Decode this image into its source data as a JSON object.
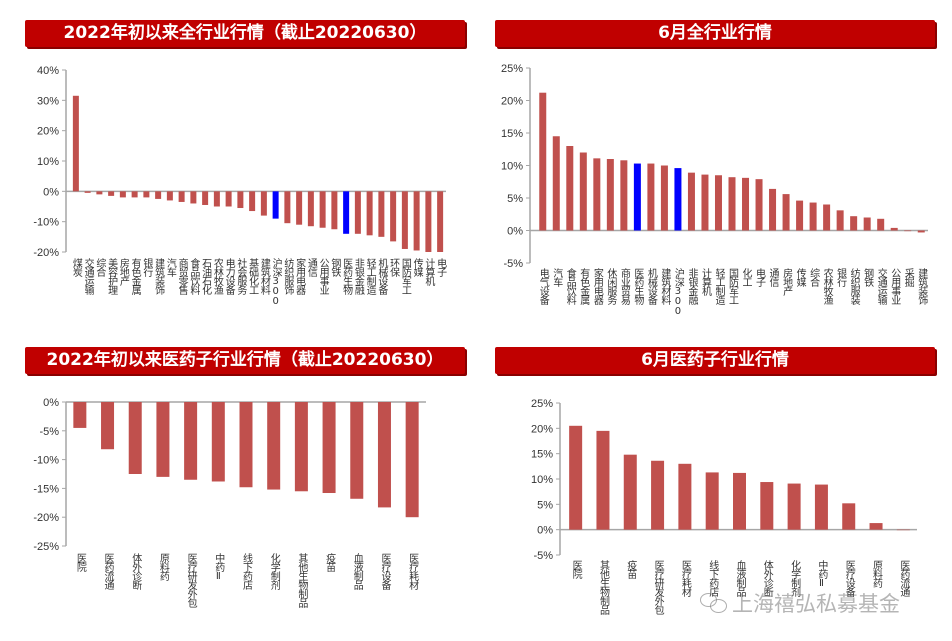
{
  "colors": {
    "bar": "#c0504d",
    "highlight": "#0000ff",
    "title_bg": "#c00000",
    "axis": "#a6a6a6"
  },
  "watermark": "上海禧弘私募基金",
  "chart_data": [
    {
      "type": "bar",
      "title": "2022年初以来全行业行情（截止20220630）",
      "ylim": [
        -20,
        40
      ],
      "yticks": [
        40,
        30,
        20,
        10,
        0,
        -10,
        -20
      ],
      "tick_labels": [
        "40%",
        "30%",
        "20%",
        "10%",
        "0%",
        "-10%",
        "-20%"
      ],
      "categories": [
        "煤炭",
        "交通运输",
        "综合",
        "美容护理",
        "房地产",
        "有色金属",
        "银行",
        "建筑装饰",
        "汽车",
        "商贸零售",
        "食品饮料",
        "石油石化",
        "农林牧渔",
        "电力设备",
        "社会服务",
        "基础化工",
        "建筑材料",
        "沪深300",
        "纺织服饰",
        "家用电器",
        "通信",
        "公用事业",
        "钢铁",
        "医药生物",
        "非银金融",
        "轻工制造",
        "机械设备",
        "环保",
        "国防军工",
        "传媒",
        "计算机",
        "电子"
      ],
      "values": [
        31.5,
        -0.5,
        -1,
        -1.5,
        -2,
        -2,
        -2,
        -2.5,
        -3,
        -3.5,
        -4,
        -4.5,
        -5,
        -5,
        -5.5,
        -6.5,
        -8,
        -9,
        -10.5,
        -11,
        -11.5,
        -12,
        -12.5,
        -14,
        -14,
        -14.5,
        -15,
        -16.5,
        -19,
        -19.5,
        -20,
        -20
      ],
      "highlight": [
        "沪深300",
        "医药生物"
      ]
    },
    {
      "type": "bar",
      "title": "6月全行业行情",
      "ylim": [
        -5,
        25
      ],
      "yticks": [
        25,
        20,
        15,
        10,
        5,
        0,
        -5
      ],
      "tick_labels": [
        "25%",
        "20%",
        "15%",
        "10%",
        "5%",
        "0%",
        "-5%"
      ],
      "categories": [
        "电气设备",
        "汽车",
        "食品饮料",
        "有色金属",
        "家用电器",
        "休闲服务",
        "商业贸易",
        "医药生物",
        "机械设备",
        "建筑材料",
        "沪深300",
        "非银金融",
        "计算机",
        "轻工制造",
        "国防军工",
        "化工",
        "电子",
        "通信",
        "房地产",
        "传媒",
        "综合",
        "农林牧渔",
        "银行",
        "纺织服装",
        "钢铁",
        "交通运输",
        "公用事业",
        "采掘",
        "建筑装饰"
      ],
      "values": [
        21.2,
        14.5,
        13,
        12,
        11.1,
        11,
        10.8,
        10.3,
        10.3,
        10,
        9.6,
        8.9,
        8.6,
        8.5,
        8.2,
        8.1,
        7.9,
        6.4,
        5.6,
        4.6,
        4.3,
        4.0,
        3.1,
        2.2,
        2.0,
        1.8,
        0.4,
        -0.1,
        -0.3
      ],
      "highlight": [
        "医药生物",
        "沪深300"
      ]
    },
    {
      "type": "bar",
      "title": "2022年初以来医药子行业行情（截止20220630）",
      "ylim": [
        -25,
        0
      ],
      "yticks": [
        0,
        -5,
        -10,
        -15,
        -20,
        -25
      ],
      "tick_labels": [
        "0%",
        "-5%",
        "-10%",
        "-15%",
        "-20%",
        "-25%"
      ],
      "categories": [
        "医院",
        "医药流通",
        "体外诊断",
        "原料药",
        "医疗研发外包",
        "中药Ⅱ",
        "线下药店",
        "化学制剂",
        "其他生物制品",
        "疫苗",
        "血液制品",
        "医疗设备",
        "医疗耗材"
      ],
      "values": [
        -4.5,
        -8.2,
        -12.5,
        -13,
        -13.5,
        -13.8,
        -14.8,
        -15.2,
        -15.5,
        -15.8,
        -16.8,
        -18.3,
        -20
      ],
      "highlight": []
    },
    {
      "type": "bar",
      "title": "6月医药子行业行情",
      "ylim": [
        -5,
        25
      ],
      "yticks": [
        25,
        20,
        15,
        10,
        5,
        0,
        -5
      ],
      "tick_labels": [
        "25%",
        "20%",
        "15%",
        "10%",
        "5%",
        "0%",
        "-5%"
      ],
      "categories": [
        "医院",
        "其他生物制品",
        "疫苗",
        "医疗研发外包",
        "医疗耗材",
        "线下药店",
        "血液制品",
        "体外诊断",
        "化学制剂",
        "中药Ⅱ",
        "医疗设备",
        "原料药",
        "医药流通"
      ],
      "values": [
        20.5,
        19.5,
        14.8,
        13.6,
        13,
        11.3,
        11.2,
        9.4,
        9.1,
        8.9,
        5.2,
        1.3,
        0
      ],
      "highlight": []
    }
  ]
}
